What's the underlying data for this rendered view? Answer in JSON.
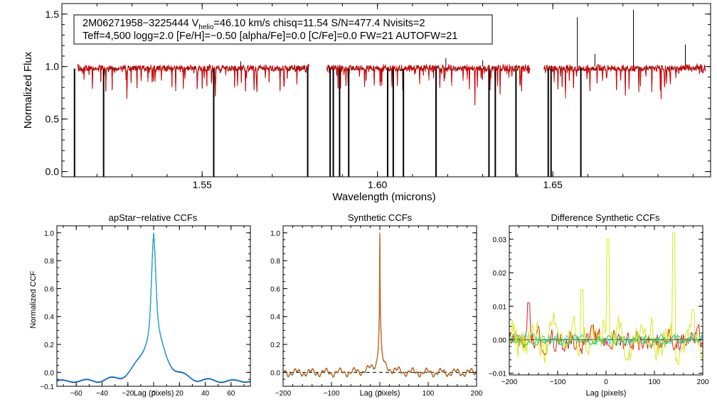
{
  "info_box": {
    "line1_pre": "2M06271958−3225444  V",
    "line1_sub": "helio",
    "line1_post": "=46.10 km/s  chisq=11.54  S/N=477.4  Nvisits=2",
    "line2": "Teff=4,500 logg=2.0 [Fe/H]=−0.50 [alpha/Fe]=0.0 [C/Fe]=0.0 FW=21 AUTOFW=21"
  },
  "chart_data": [
    {
      "type": "line",
      "id": "spectrum",
      "title": "",
      "xlabel": "Wavelength (microns)",
      "ylabel": "Normalized Flux",
      "xlim": [
        1.51,
        1.695
      ],
      "ylim": [
        -0.05,
        1.6
      ],
      "xticks": [
        1.55,
        1.6,
        1.65
      ],
      "xtick_labels": [
        "1.55",
        "1.60",
        "1.65"
      ],
      "yticks": [
        0.0,
        0.5,
        1.0,
        1.5
      ],
      "ytick_labels": [
        "0.0",
        "0.5",
        "1.0",
        "1.5"
      ],
      "chips": [
        [
          1.5145,
          1.5805
        ],
        [
          1.5855,
          1.6435
        ],
        [
          1.6475,
          1.6935
        ]
      ],
      "deep_lines": [
        1.5136,
        1.5219,
        1.5533,
        1.5801,
        1.5865,
        1.5874,
        1.5892,
        1.5918,
        1.6029,
        1.6045,
        1.6074,
        1.6167,
        1.6318,
        1.6336,
        1.6395,
        1.6487,
        1.6495,
        1.658
      ],
      "spikes": [
        [
          1.657,
          1.47
        ],
        [
          1.673,
          1.54
        ],
        [
          1.6878,
          1.21
        ],
        [
          1.662,
          1.12
        ],
        [
          1.6195,
          1.08
        ],
        [
          1.63,
          1.06
        ],
        [
          1.561,
          1.05
        ]
      ],
      "series": [
        {
          "name": "",
          "color": "#000000"
        },
        {
          "name": "",
          "color": "#e00000"
        }
      ]
    },
    {
      "type": "line",
      "id": "apstar_ccf",
      "title": "apStar−relative CCFs",
      "xlabel": "Lag (pixels)",
      "ylabel": "Normalized CCF",
      "xlim": [
        -75,
        75
      ],
      "ylim": [
        -0.1,
        1.05
      ],
      "xticks": [
        -60,
        -40,
        -20,
        0,
        20,
        40,
        60
      ],
      "xtick_labels": [
        "−60",
        "−40",
        "−20",
        "0",
        "20",
        "40",
        "60"
      ],
      "yticks": [
        -0.1,
        0.0,
        0.2,
        0.4,
        0.6,
        0.8,
        1.0
      ],
      "ytick_labels": [
        "−0.1",
        "0.0",
        "0.2",
        "0.4",
        "0.6",
        "0.8",
        "1.0"
      ],
      "series": [
        {
          "name": "",
          "color": "#0000cc"
        },
        {
          "name": "",
          "color": "#20b0c0"
        }
      ]
    },
    {
      "type": "line",
      "id": "synthetic_ccf",
      "title": "Synthetic CCFs",
      "xlabel": "Lag (pixels)",
      "ylabel": "",
      "xlim": [
        -200,
        200
      ],
      "ylim": [
        -0.1,
        1.05
      ],
      "xticks": [
        -200,
        -100,
        0,
        100,
        200
      ],
      "xtick_labels": [
        "−200",
        "−100",
        "0",
        "100",
        "200"
      ],
      "yticks": [
        0.0,
        0.2,
        0.4,
        0.6,
        0.8,
        1.0
      ],
      "ytick_labels": [
        "0.0",
        "0.2",
        "0.4",
        "0.6",
        "0.8",
        "1.0"
      ],
      "zero_line": true,
      "series": [
        {
          "name": "",
          "color": "#2a6a2a"
        },
        {
          "name": "",
          "color": "#d06018"
        }
      ]
    },
    {
      "type": "line",
      "id": "diff_ccf",
      "title": "Difference Synthetic CCFs",
      "xlabel": "Lag (pixels)",
      "ylabel": "",
      "xlim": [
        -200,
        200
      ],
      "ylim": [
        -0.0105,
        0.034
      ],
      "xticks": [
        -200,
        -100,
        0,
        100,
        200
      ],
      "xtick_labels": [
        "−200",
        "−100",
        "0",
        "100",
        "200"
      ],
      "yticks": [
        -0.01,
        0.0,
        0.01,
        0.02,
        0.03
      ],
      "ytick_labels": [
        "−0.01",
        "0.00",
        "0.01",
        "0.02",
        "0.03"
      ],
      "zero_line": true,
      "series": [
        {
          "name": "",
          "color": "#e02020"
        },
        {
          "name": "",
          "color": "#30e0d0"
        },
        {
          "name": "",
          "color": "#d8e820"
        },
        {
          "name": "",
          "color": "#40c040"
        }
      ]
    }
  ]
}
